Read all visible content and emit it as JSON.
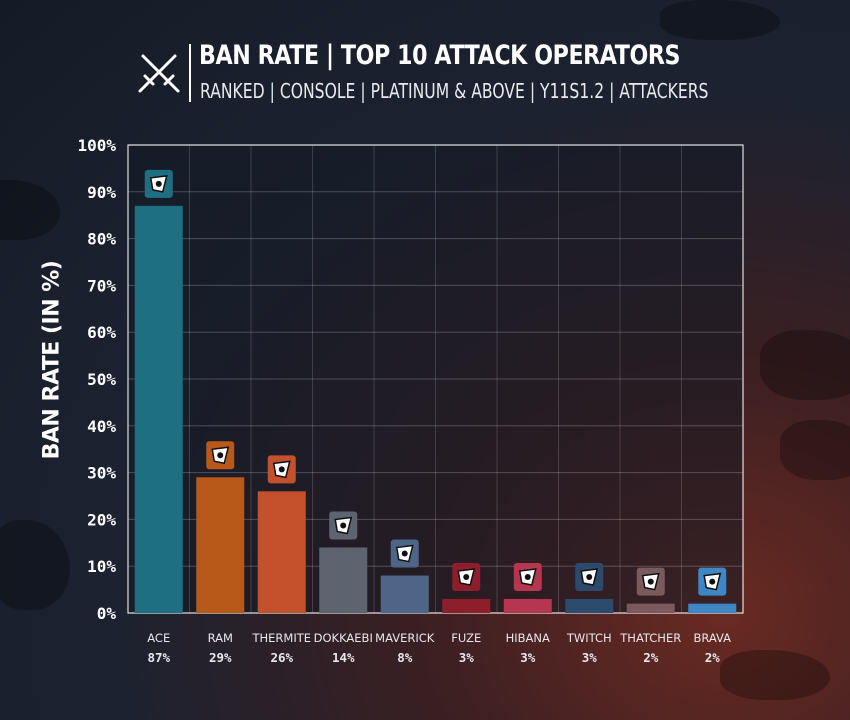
{
  "header": {
    "title": "BAN RATE | TOP 10 ATTACK OPERATORS",
    "subtitle": "RANKED | CONSOLE | PLATINUM & ABOVE | Y11S1.2 | ATTACKERS"
  },
  "chart_data": {
    "type": "bar",
    "ylabel": "BAN RATE (IN %)",
    "xlabel": "",
    "ylim": [
      0,
      100
    ],
    "yticks": [
      0,
      10,
      20,
      30,
      40,
      50,
      60,
      70,
      80,
      90,
      100
    ],
    "ytick_suffix": "%",
    "grid": true,
    "categories": [
      "ACE",
      "RAM",
      "THERMITE",
      "DOKKAEBI",
      "MAVERICK",
      "FUZE",
      "HIBANA",
      "TWITCH",
      "THATCHER",
      "BRAVA"
    ],
    "values": [
      87,
      29,
      26,
      14,
      8,
      3,
      3,
      3,
      2,
      2
    ],
    "value_labels": [
      "87%",
      "29%",
      "26%",
      "14%",
      "8%",
      "3%",
      "3%",
      "3%",
      "2%",
      "2%"
    ],
    "colors": [
      "#1f6f82",
      "#b8591a",
      "#c4512c",
      "#5d6470",
      "#4e6587",
      "#8f1e2c",
      "#b5364e",
      "#2c4a6c",
      "#7a5a5c",
      "#3f86c4"
    ],
    "operator_icons": [
      "ace-icon",
      "ram-icon",
      "thermite-icon",
      "dokkaebi-icon",
      "maverick-icon",
      "fuze-icon",
      "hibana-icon",
      "twitch-icon",
      "thatcher-icon",
      "brava-icon"
    ]
  }
}
